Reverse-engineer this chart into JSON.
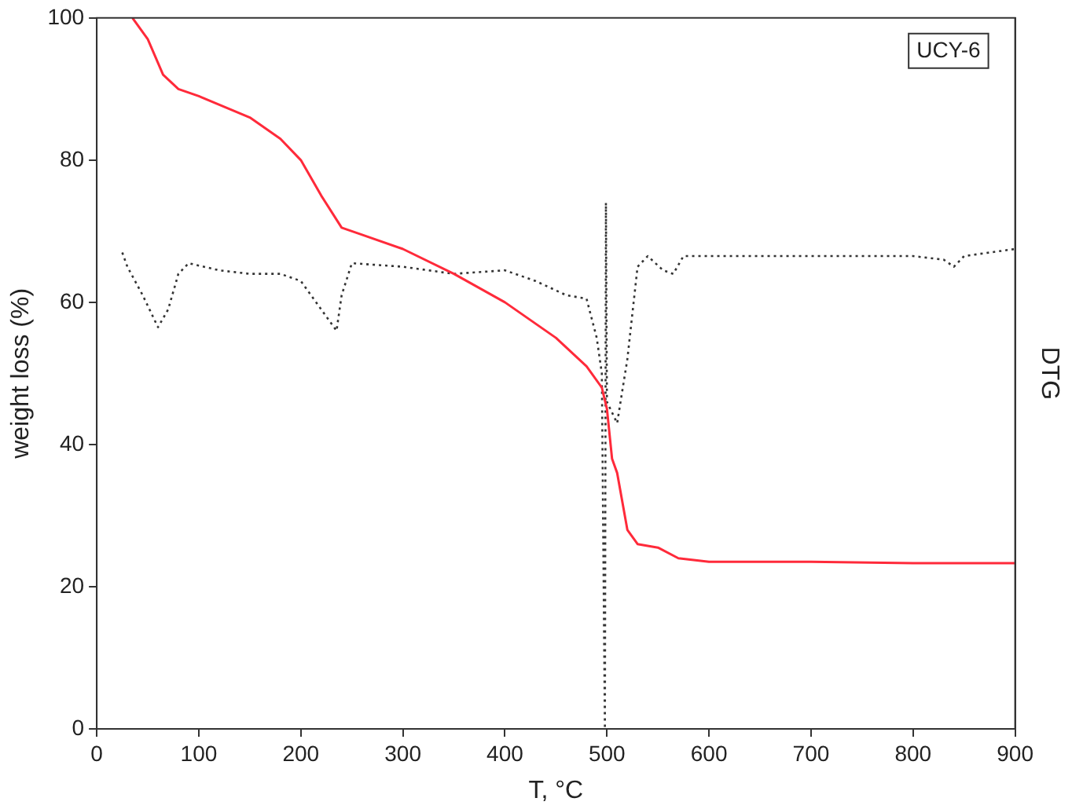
{
  "chart_data": {
    "type": "line",
    "xlabel": "T, °C",
    "ylabel": "weight loss (%)",
    "y2label": "DTG",
    "annotations": [
      "UCY-6"
    ],
    "xlim": [
      0,
      900
    ],
    "xticks": [
      0,
      100,
      200,
      300,
      400,
      500,
      600,
      700,
      800,
      900
    ],
    "ylim": [
      0,
      100
    ],
    "yticks": [
      0,
      20,
      40,
      60,
      80,
      100
    ],
    "grid": false,
    "legend": false,
    "marker": "none",
    "series": [
      {
        "color": "#ff2a3a",
        "line_style": "solid",
        "x": [
          35,
          50,
          65,
          80,
          100,
          150,
          180,
          200,
          220,
          240,
          260,
          300,
          350,
          400,
          450,
          480,
          495,
          500,
          505,
          510,
          520,
          530,
          550,
          570,
          600,
          700,
          800,
          900
        ],
        "values": [
          100,
          97,
          92,
          90,
          89,
          86,
          83,
          80,
          75,
          70.5,
          69.5,
          67.5,
          64,
          60,
          55,
          51,
          48,
          45,
          38,
          36,
          28,
          26,
          25.5,
          24,
          23.5,
          23.5,
          23.3,
          23.3
        ]
      },
      {
        "color": "#333333",
        "line_style": "dotted",
        "x": [
          25,
          30,
          45,
          60,
          70,
          80,
          90,
          120,
          150,
          180,
          200,
          220,
          235,
          240,
          250,
          300,
          350,
          400,
          430,
          460,
          480,
          490,
          495,
          498,
          499,
          500,
          510,
          520,
          530,
          540,
          555,
          565,
          575,
          600,
          700,
          800,
          830,
          840,
          850,
          900
        ],
        "values": [
          67,
          65,
          61,
          56.5,
          59,
          64,
          65.5,
          64.5,
          64,
          64,
          63,
          59,
          56,
          61,
          65.5,
          65,
          64,
          64.5,
          63,
          61,
          60.5,
          55,
          50,
          0,
          74,
          46,
          43,
          52,
          65,
          66.5,
          64.5,
          64,
          66.5,
          66.5,
          66.5,
          66.5,
          66,
          65,
          66.5,
          67.5
        ]
      }
    ]
  }
}
